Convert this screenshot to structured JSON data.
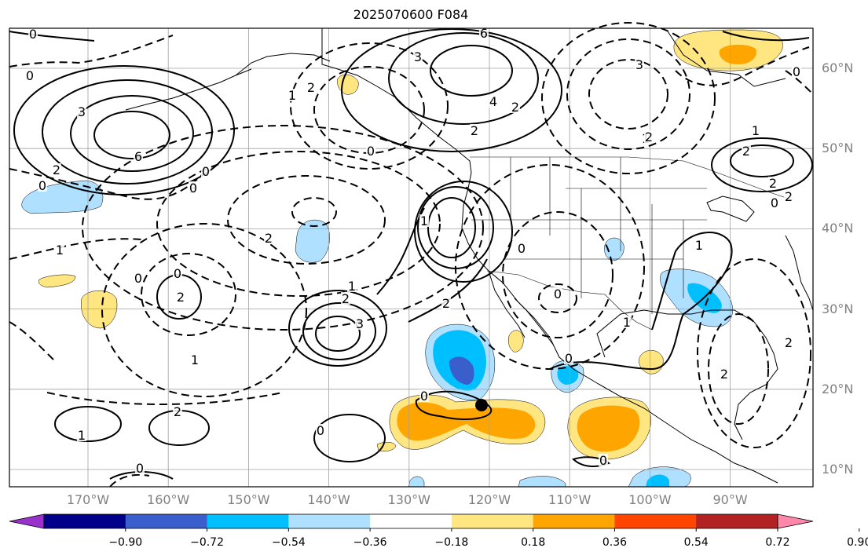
{
  "title": "2025070600 F084",
  "latitude_labels": [
    {
      "lat": 60,
      "text": "60°N"
    },
    {
      "lat": 50,
      "text": "50°N"
    },
    {
      "lat": 40,
      "text": "40°N"
    },
    {
      "lat": 30,
      "text": "30°N"
    },
    {
      "lat": 20,
      "text": "20°N"
    },
    {
      "lat": 10,
      "text": "10°N"
    }
  ],
  "longitude_labels": [
    {
      "lon": -170,
      "text": "170°W"
    },
    {
      "lon": -160,
      "text": "160°W"
    },
    {
      "lon": -150,
      "text": "150°W"
    },
    {
      "lon": -140,
      "text": "140°W"
    },
    {
      "lon": -130,
      "text": "130°W"
    },
    {
      "lon": -120,
      "text": "120°W"
    },
    {
      "lon": -110,
      "text": "110°W"
    },
    {
      "lon": -100,
      "text": "100°W"
    },
    {
      "lon": -90,
      "text": "90°W"
    }
  ],
  "colorbar": {
    "colors": [
      "#9932cc",
      "#00008b",
      "#3a5fcd",
      "#00bfff",
      "#b0e0ff",
      "#ffffff",
      "#ffe680",
      "#ffa500",
      "#ff4500",
      "#b22222",
      "#ff88aa"
    ],
    "tick_labels": [
      "−0.90",
      "−0.72",
      "−0.54",
      "−0.36",
      "−0.18",
      "0.18",
      "0.36",
      "0.54",
      "0.72",
      "0.90"
    ]
  },
  "contour_labels": [
    "0",
    "0",
    "3",
    "6",
    "2",
    "0",
    "1",
    "2",
    "0",
    "3",
    "6",
    "4",
    "2",
    "0",
    "3",
    "2",
    "1",
    "2",
    "2",
    "0",
    "2",
    "3",
    "1",
    "1",
    "2",
    "0",
    "2",
    "1",
    "0",
    "1",
    "2",
    "3",
    "0",
    "0",
    "2",
    "1",
    "1",
    "0",
    "1",
    "2",
    "0",
    "0",
    "0",
    "0",
    "1",
    "0",
    "2",
    "2",
    "0",
    "2"
  ],
  "marker_label": "",
  "fill_colors": {
    "light_blue": "#b0e0ff",
    "blue": "#00bfff",
    "dark_blue": "#3a5fcd",
    "yellow": "#ffe680",
    "orange": "#ffa500"
  }
}
